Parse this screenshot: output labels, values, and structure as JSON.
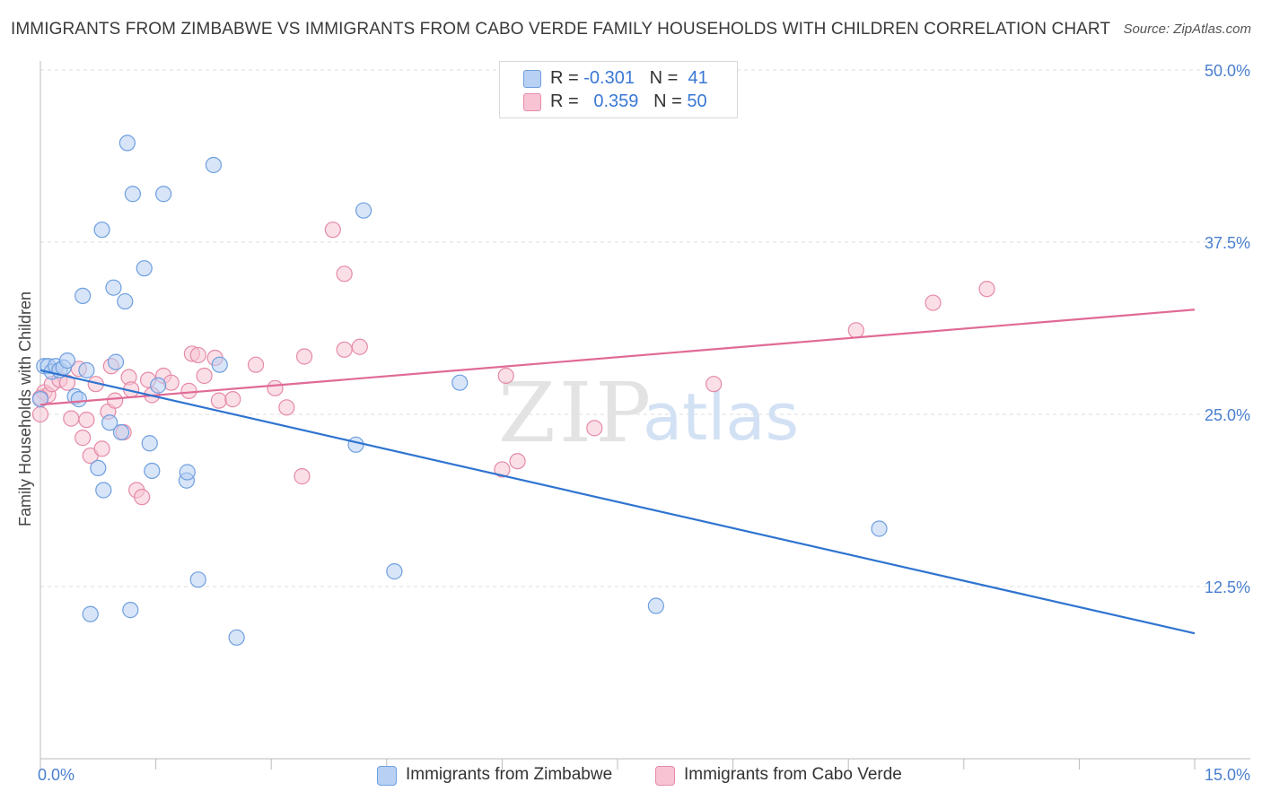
{
  "title": "IMMIGRANTS FROM ZIMBABWE VS IMMIGRANTS FROM CABO VERDE FAMILY HOUSEHOLDS WITH CHILDREN CORRELATION CHART",
  "source": "Source: ZipAtlas.com",
  "watermark": {
    "zip": "ZIP",
    "atlas": "atlas"
  },
  "legend": {
    "r_label": "R =",
    "n_label": "N =",
    "rows": [
      {
        "r": "-0.301",
        "n": "41"
      },
      {
        "r": "0.359",
        "n": "50"
      }
    ]
  },
  "colors": {
    "zimbabwe_fill": "#b8d0f3",
    "zimbabwe_stroke": "#6e9fe0",
    "zimbabwe_line": "#2f74d0",
    "caboverde_fill": "#f8c4d4",
    "caboverde_stroke": "#e58aa8",
    "caboverde_line": "#e06a96",
    "tick_text": "#4a7fd0",
    "grid": "#dddddd"
  },
  "chart_data": {
    "type": "scatter",
    "title": "IMMIGRANTS FROM ZIMBABWE VS IMMIGRANTS FROM CABO VERDE FAMILY HOUSEHOLDS WITH CHILDREN CORRELATION CHART",
    "xlabel": "",
    "ylabel": "Family Households with Children",
    "xlim": [
      0,
      15
    ],
    "ylim": [
      0,
      50
    ],
    "x_tick_labels": [
      "0.0%",
      "15.0%"
    ],
    "y_ticks": [
      12.5,
      25.0,
      37.5,
      50.0
    ],
    "y_tick_labels": [
      "12.5%",
      "25.0%",
      "37.5%",
      "50.0%"
    ],
    "grid": true,
    "legend_position": "top-center",
    "series": [
      {
        "name": "Immigrants from Zimbabwe",
        "trend": {
          "x": [
            0.0,
            15.0
          ],
          "y": [
            28.2,
            9.1
          ]
        },
        "points": [
          {
            "x": 0.0,
            "y": 26.1
          },
          {
            "x": 0.05,
            "y": 28.5
          },
          {
            "x": 0.1,
            "y": 28.5
          },
          {
            "x": 0.15,
            "y": 28.1
          },
          {
            "x": 0.2,
            "y": 28.5
          },
          {
            "x": 0.25,
            "y": 28.2
          },
          {
            "x": 0.3,
            "y": 28.4
          },
          {
            "x": 0.35,
            "y": 28.9
          },
          {
            "x": 0.45,
            "y": 26.3
          },
          {
            "x": 0.5,
            "y": 26.1
          },
          {
            "x": 0.55,
            "y": 33.6
          },
          {
            "x": 0.6,
            "y": 28.2
          },
          {
            "x": 0.65,
            "y": 10.5
          },
          {
            "x": 0.75,
            "y": 21.1
          },
          {
            "x": 0.8,
            "y": 38.4
          },
          {
            "x": 0.82,
            "y": 19.5
          },
          {
            "x": 0.9,
            "y": 24.4
          },
          {
            "x": 0.95,
            "y": 34.2
          },
          {
            "x": 0.98,
            "y": 28.8
          },
          {
            "x": 1.05,
            "y": 23.7
          },
          {
            "x": 1.1,
            "y": 33.2
          },
          {
            "x": 1.13,
            "y": 44.7
          },
          {
            "x": 1.17,
            "y": 10.8
          },
          {
            "x": 1.2,
            "y": 41.0
          },
          {
            "x": 1.35,
            "y": 35.6
          },
          {
            "x": 1.42,
            "y": 22.9
          },
          {
            "x": 1.45,
            "y": 20.9
          },
          {
            "x": 1.53,
            "y": 27.1
          },
          {
            "x": 1.6,
            "y": 41.0
          },
          {
            "x": 1.9,
            "y": 20.2
          },
          {
            "x": 1.91,
            "y": 20.8
          },
          {
            "x": 2.05,
            "y": 13.0
          },
          {
            "x": 2.25,
            "y": 43.1
          },
          {
            "x": 2.33,
            "y": 28.6
          },
          {
            "x": 2.55,
            "y": 8.8
          },
          {
            "x": 4.1,
            "y": 22.8
          },
          {
            "x": 4.2,
            "y": 39.8
          },
          {
            "x": 4.6,
            "y": 13.6
          },
          {
            "x": 5.45,
            "y": 27.3
          },
          {
            "x": 8.0,
            "y": 11.1
          },
          {
            "x": 10.9,
            "y": 16.7
          }
        ]
      },
      {
        "name": "Immigrants from Cabo Verde",
        "trend": {
          "x": [
            0.0,
            15.0
          ],
          "y": [
            25.7,
            32.6
          ]
        },
        "points": [
          {
            "x": 0.0,
            "y": 25.0
          },
          {
            "x": 0.05,
            "y": 26.6
          },
          {
            "x": 0.1,
            "y": 26.4
          },
          {
            "x": 0.15,
            "y": 27.2
          },
          {
            "x": 0.25,
            "y": 27.5
          },
          {
            "x": 0.35,
            "y": 27.3
          },
          {
            "x": 0.4,
            "y": 24.7
          },
          {
            "x": 0.5,
            "y": 28.3
          },
          {
            "x": 0.55,
            "y": 23.3
          },
          {
            "x": 0.6,
            "y": 24.6
          },
          {
            "x": 0.65,
            "y": 22.0
          },
          {
            "x": 0.72,
            "y": 27.2
          },
          {
            "x": 0.8,
            "y": 22.5
          },
          {
            "x": 0.88,
            "y": 25.2
          },
          {
            "x": 0.92,
            "y": 28.5
          },
          {
            "x": 0.97,
            "y": 26.0
          },
          {
            "x": 1.08,
            "y": 23.7
          },
          {
            "x": 1.15,
            "y": 27.7
          },
          {
            "x": 1.18,
            "y": 26.8
          },
          {
            "x": 1.25,
            "y": 19.5
          },
          {
            "x": 1.32,
            "y": 19.0
          },
          {
            "x": 1.4,
            "y": 27.5
          },
          {
            "x": 1.45,
            "y": 26.4
          },
          {
            "x": 1.6,
            "y": 27.8
          },
          {
            "x": 1.7,
            "y": 27.3
          },
          {
            "x": 1.93,
            "y": 26.7
          },
          {
            "x": 1.97,
            "y": 29.4
          },
          {
            "x": 2.05,
            "y": 29.3
          },
          {
            "x": 2.13,
            "y": 27.8
          },
          {
            "x": 2.27,
            "y": 29.1
          },
          {
            "x": 2.32,
            "y": 26.0
          },
          {
            "x": 2.5,
            "y": 26.1
          },
          {
            "x": 2.8,
            "y": 28.6
          },
          {
            "x": 3.05,
            "y": 26.9
          },
          {
            "x": 3.2,
            "y": 25.5
          },
          {
            "x": 3.4,
            "y": 20.5
          },
          {
            "x": 3.43,
            "y": 29.2
          },
          {
            "x": 3.8,
            "y": 38.4
          },
          {
            "x": 3.95,
            "y": 35.2
          },
          {
            "x": 3.95,
            "y": 29.7
          },
          {
            "x": 4.15,
            "y": 29.9
          },
          {
            "x": 6.0,
            "y": 21.0
          },
          {
            "x": 6.05,
            "y": 27.8
          },
          {
            "x": 6.2,
            "y": 21.6
          },
          {
            "x": 7.2,
            "y": 24.0
          },
          {
            "x": 8.75,
            "y": 27.2
          },
          {
            "x": 10.6,
            "y": 31.1
          },
          {
            "x": 11.6,
            "y": 33.1
          },
          {
            "x": 12.3,
            "y": 34.1
          },
          {
            "x": 0.0,
            "y": 26.2
          }
        ]
      }
    ]
  }
}
